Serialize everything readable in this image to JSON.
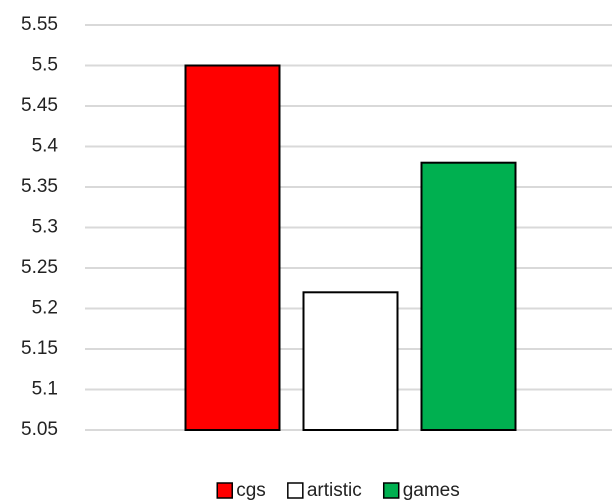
{
  "chart_data": {
    "type": "bar",
    "categories": [
      null
    ],
    "series": [
      {
        "name": "cgs",
        "color": "#ff0000",
        "values": [
          5.5
        ]
      },
      {
        "name": "artistic",
        "color": "#ffffff",
        "values": [
          5.22
        ]
      },
      {
        "name": "games",
        "color": "#00b050",
        "values": [
          5.38
        ]
      }
    ],
    "ylim": [
      5.05,
      5.55
    ],
    "yticks": [
      5.05,
      5.1,
      5.15,
      5.2,
      5.25,
      5.3,
      5.35,
      5.4,
      5.45,
      5.5,
      5.55
    ],
    "grid": true,
    "legend": "bottom"
  }
}
